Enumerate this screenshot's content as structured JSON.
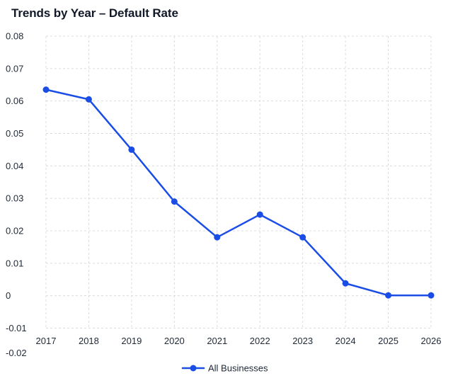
{
  "title": "Trends by Year – Default Rate",
  "colors": {
    "series": "#1a4de6",
    "grid": "#d9dce1",
    "text": "#1f2937"
  },
  "chart_data": {
    "type": "line",
    "title": "Trends by Year – Default Rate",
    "xlabel": "",
    "ylabel": "",
    "categories": [
      "2017",
      "2018",
      "2019",
      "2020",
      "2021",
      "2022",
      "2023",
      "2024",
      "2025",
      "2026"
    ],
    "yticks": [
      "0.08",
      "0.07",
      "0.06",
      "0.05",
      "0.04",
      "0.03",
      "0.02",
      "0.01",
      "0",
      "-0.01",
      "-0.02"
    ],
    "ylim": [
      -0.02,
      0.08
    ],
    "grid": true,
    "legend_position": "bottom",
    "series": [
      {
        "name": "All Businesses",
        "values": [
          0.0635,
          0.0605,
          0.045,
          0.029,
          0.018,
          0.025,
          0.018,
          0.0038,
          0.0001,
          0.0001
        ]
      }
    ]
  }
}
